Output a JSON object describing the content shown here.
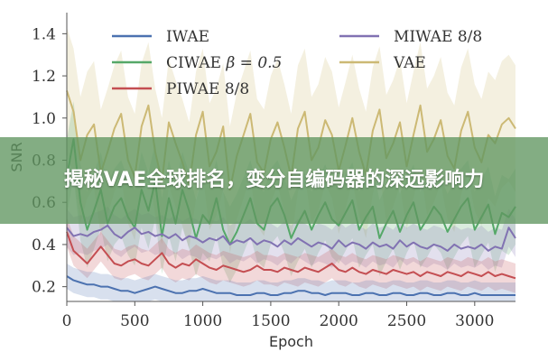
{
  "banner": {
    "text": "揭秘VAE全球排名，变分自编码器的深远影响力"
  },
  "chart_data": {
    "type": "line",
    "xlabel": "Epoch",
    "ylabel": "SNR",
    "xlim": [
      0,
      3300
    ],
    "ylim": [
      0.13,
      1.5
    ],
    "x_ticks": [
      "0",
      "500",
      "1000",
      "1500",
      "2000",
      "2500",
      "3000"
    ],
    "y_ticks": [
      "0.2",
      "0.4",
      "0.6",
      "0.8",
      "1.0",
      "1.2",
      "1.4"
    ],
    "grid": false,
    "legend_position": "top",
    "x": [
      0,
      50,
      100,
      150,
      200,
      250,
      300,
      350,
      400,
      450,
      500,
      550,
      600,
      650,
      700,
      750,
      800,
      850,
      900,
      950,
      1000,
      1050,
      1100,
      1150,
      1200,
      1250,
      1300,
      1350,
      1400,
      1450,
      1500,
      1550,
      1600,
      1650,
      1700,
      1750,
      1800,
      1850,
      1900,
      1950,
      2000,
      2050,
      2100,
      2150,
      2200,
      2250,
      2300,
      2350,
      2400,
      2450,
      2500,
      2550,
      2600,
      2650,
      2700,
      2750,
      2800,
      2850,
      2900,
      2950,
      3000,
      3050,
      3100,
      3150,
      3200,
      3250,
      3300
    ],
    "series": [
      {
        "name": "IWAE",
        "color": "#4c72b0",
        "band": 0.06,
        "values": [
          0.25,
          0.23,
          0.22,
          0.21,
          0.21,
          0.2,
          0.2,
          0.19,
          0.18,
          0.18,
          0.17,
          0.18,
          0.19,
          0.2,
          0.19,
          0.18,
          0.17,
          0.17,
          0.18,
          0.18,
          0.19,
          0.18,
          0.17,
          0.17,
          0.17,
          0.16,
          0.16,
          0.16,
          0.17,
          0.17,
          0.16,
          0.16,
          0.17,
          0.17,
          0.18,
          0.18,
          0.17,
          0.17,
          0.16,
          0.17,
          0.17,
          0.17,
          0.16,
          0.16,
          0.17,
          0.17,
          0.16,
          0.16,
          0.17,
          0.17,
          0.16,
          0.16,
          0.17,
          0.17,
          0.16,
          0.16,
          0.17,
          0.17,
          0.16,
          0.16,
          0.17,
          0.16,
          0.16,
          0.16,
          0.16,
          0.16,
          0.16
        ]
      },
      {
        "name": "CIWAE β = 0.5",
        "label_text": "CIWAE",
        "label_beta": "β = 0.5",
        "color": "#55a868",
        "band": 0.18,
        "values": [
          0.72,
          0.9,
          0.6,
          0.47,
          0.56,
          0.66,
          0.5,
          0.58,
          0.62,
          0.53,
          0.48,
          0.66,
          0.56,
          0.7,
          0.44,
          0.62,
          0.5,
          0.66,
          0.56,
          0.43,
          0.54,
          0.5,
          0.62,
          0.47,
          0.4,
          0.46,
          0.54,
          0.62,
          0.5,
          0.47,
          0.58,
          0.62,
          0.54,
          0.43,
          0.5,
          0.56,
          0.47,
          0.54,
          0.6,
          0.52,
          0.49,
          0.55,
          0.61,
          0.47,
          0.53,
          0.58,
          0.43,
          0.5,
          0.56,
          0.46,
          0.54,
          0.6,
          0.47,
          0.52,
          0.58,
          0.54,
          0.46,
          0.52,
          0.58,
          0.62,
          0.47,
          0.53,
          0.59,
          0.45,
          0.55,
          0.53,
          0.58
        ]
      },
      {
        "name": "PIWAE 8/8",
        "color": "#c44e52",
        "band": 0.07,
        "values": [
          0.46,
          0.37,
          0.34,
          0.31,
          0.35,
          0.39,
          0.35,
          0.31,
          0.3,
          0.32,
          0.33,
          0.31,
          0.3,
          0.33,
          0.36,
          0.31,
          0.29,
          0.31,
          0.3,
          0.33,
          0.31,
          0.29,
          0.28,
          0.3,
          0.29,
          0.28,
          0.27,
          0.28,
          0.3,
          0.28,
          0.28,
          0.27,
          0.29,
          0.28,
          0.27,
          0.29,
          0.28,
          0.27,
          0.29,
          0.31,
          0.28,
          0.27,
          0.29,
          0.27,
          0.26,
          0.28,
          0.27,
          0.26,
          0.28,
          0.27,
          0.26,
          0.27,
          0.25,
          0.27,
          0.26,
          0.25,
          0.27,
          0.26,
          0.25,
          0.27,
          0.26,
          0.25,
          0.27,
          0.25,
          0.26,
          0.25,
          0.24
        ]
      },
      {
        "name": "MIWAE 8/8",
        "color": "#8172b2",
        "band": 0.09,
        "values": [
          0.48,
          0.44,
          0.45,
          0.44,
          0.46,
          0.47,
          0.49,
          0.45,
          0.43,
          0.46,
          0.48,
          0.45,
          0.46,
          0.44,
          0.45,
          0.43,
          0.45,
          0.42,
          0.44,
          0.43,
          0.41,
          0.43,
          0.42,
          0.44,
          0.4,
          0.42,
          0.41,
          0.43,
          0.4,
          0.42,
          0.41,
          0.39,
          0.42,
          0.4,
          0.43,
          0.41,
          0.39,
          0.41,
          0.4,
          0.38,
          0.42,
          0.39,
          0.41,
          0.4,
          0.38,
          0.41,
          0.39,
          0.4,
          0.38,
          0.42,
          0.39,
          0.41,
          0.39,
          0.38,
          0.4,
          0.39,
          0.37,
          0.4,
          0.38,
          0.39,
          0.38,
          0.4,
          0.37,
          0.39,
          0.38,
          0.48,
          0.43
        ]
      },
      {
        "name": "VAE",
        "color": "#ccb974",
        "band": 0.3,
        "values": [
          1.13,
          1.03,
          0.8,
          0.92,
          0.97,
          0.74,
          0.84,
          0.95,
          1.02,
          0.8,
          0.72,
          0.96,
          1.06,
          0.84,
          0.7,
          0.98,
          0.88,
          0.79,
          0.68,
          0.92,
          1.03,
          0.77,
          0.84,
          0.96,
          0.66,
          0.82,
          0.92,
          1.02,
          0.79,
          0.74,
          0.9,
          0.98,
          0.86,
          0.72,
          0.95,
          1.03,
          0.8,
          0.86,
          0.99,
          0.92,
          0.75,
          0.87,
          1.0,
          0.84,
          0.73,
          0.94,
          1.04,
          0.81,
          0.88,
          0.98,
          0.77,
          0.92,
          1.06,
          0.84,
          0.9,
          0.99,
          0.82,
          0.76,
          0.94,
          1.03,
          0.86,
          0.79,
          0.92,
          0.88,
          0.97,
          1.0,
          0.95
        ]
      }
    ]
  }
}
